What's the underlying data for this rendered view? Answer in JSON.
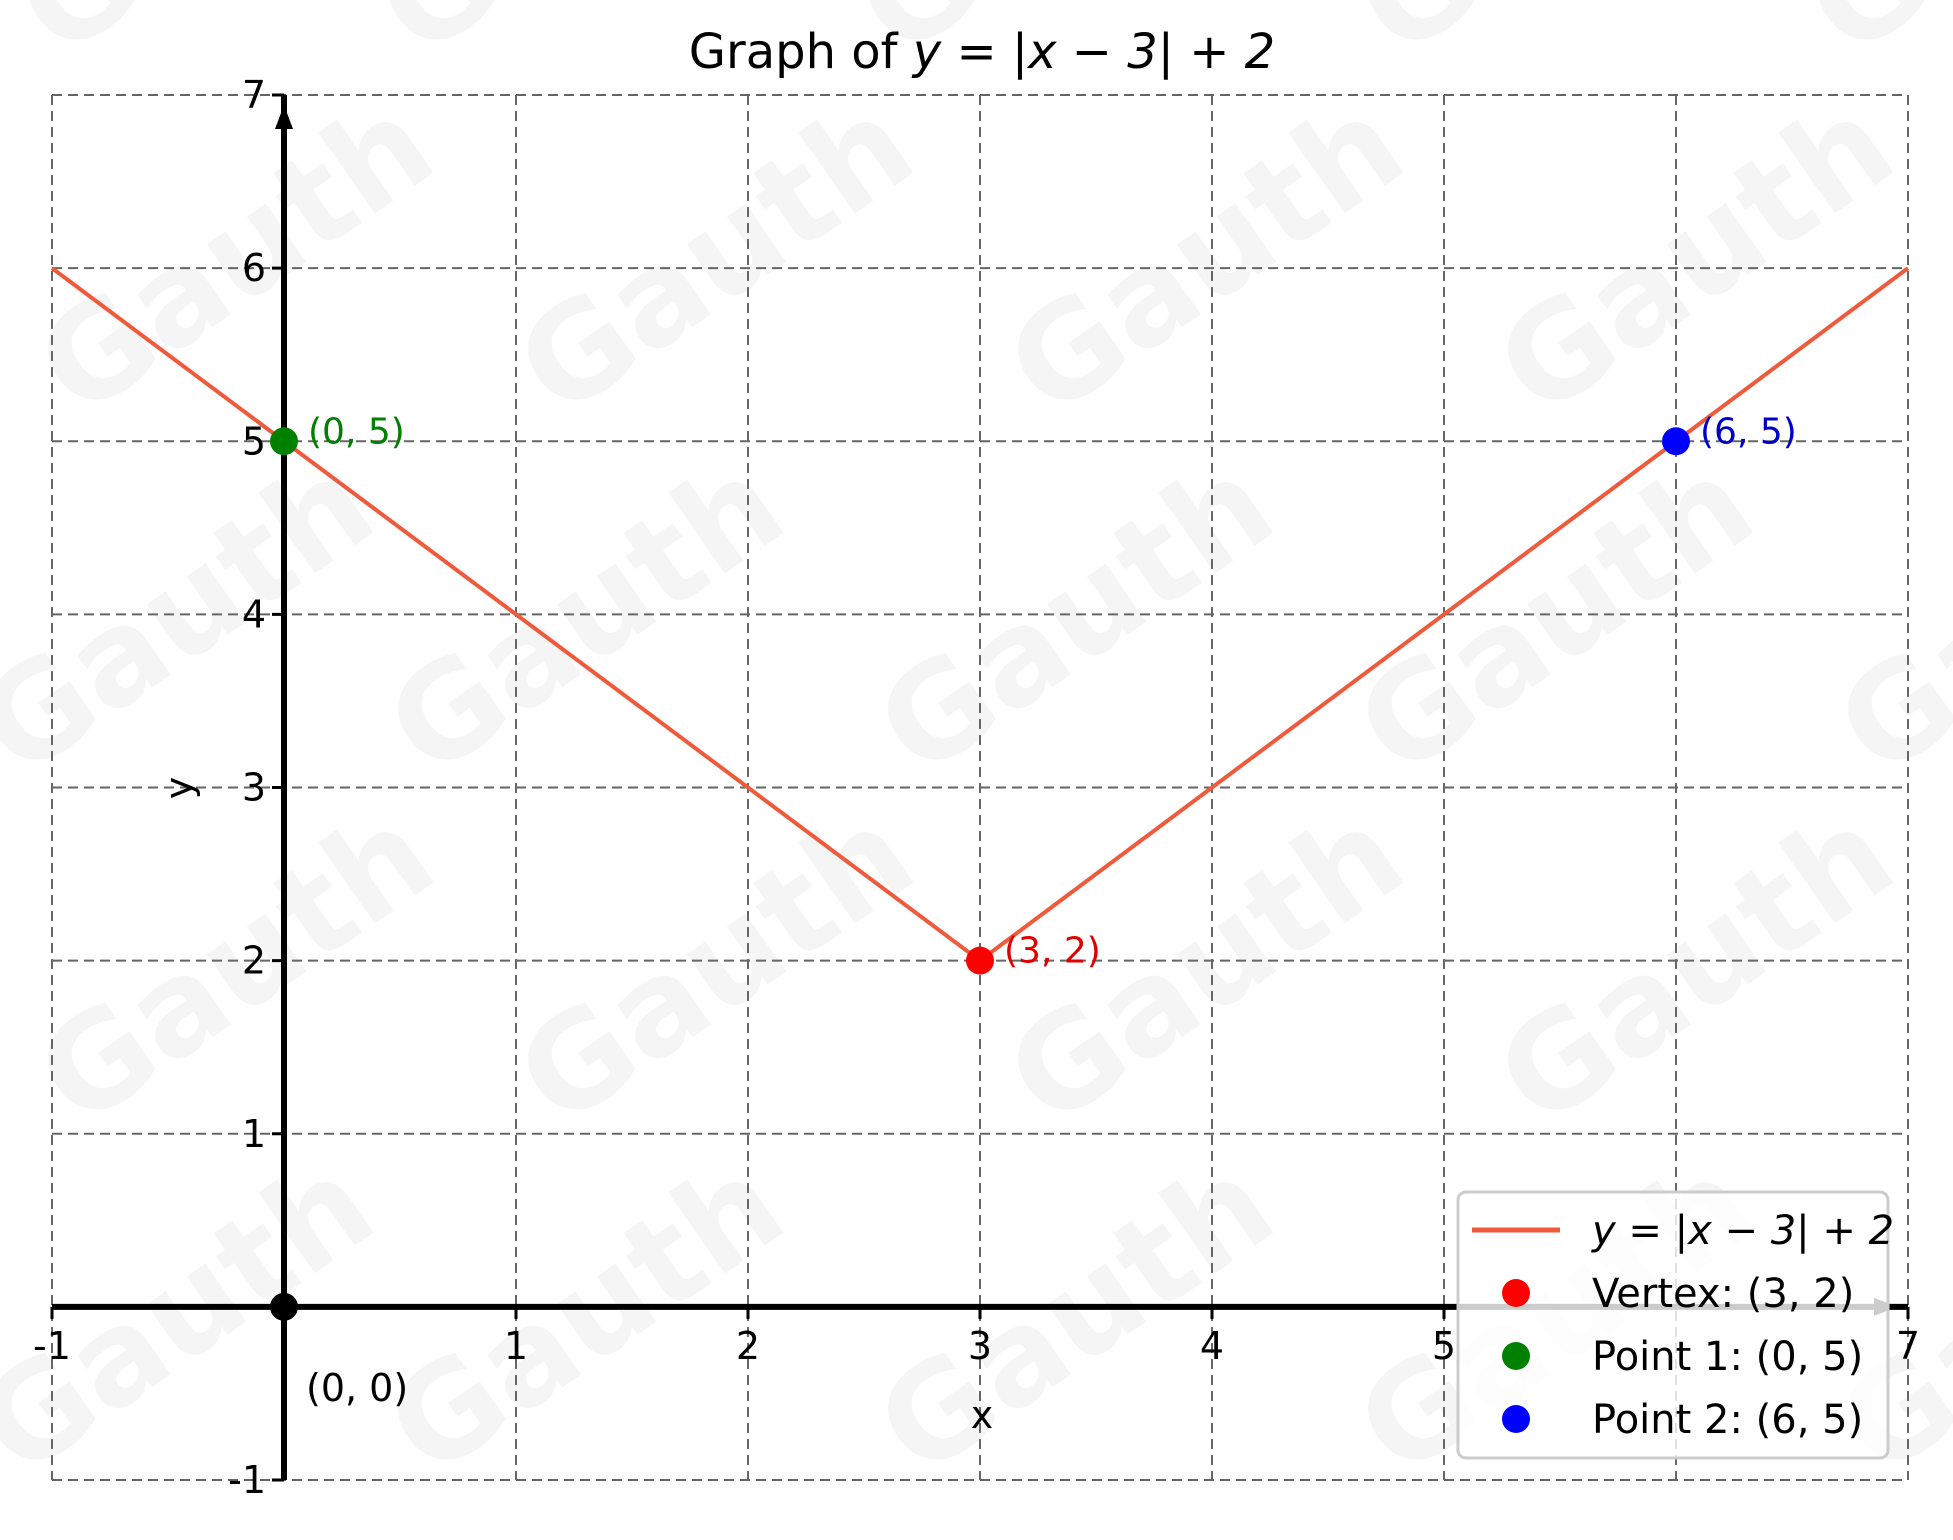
{
  "chart_data": {
    "type": "line",
    "title": "Graph of y = |x − 3| + 2",
    "title_parts": {
      "prefix": "Graph of ",
      "math": "y = |x − 3| + 2"
    },
    "xlabel": "x",
    "ylabel": "y",
    "xlim": [
      -1,
      7
    ],
    "ylim": [
      -1,
      7
    ],
    "grid": true,
    "grid_style": "dashed",
    "xticks": [
      -1,
      1,
      2,
      3,
      4,
      5,
      7
    ],
    "xtick_labels": [
      "-1",
      "1",
      "2",
      "3",
      "4",
      "5",
      "7"
    ],
    "yticks": [
      -1,
      1,
      2,
      3,
      4,
      5,
      6,
      7
    ],
    "ytick_labels": [
      "-1",
      "1",
      "2",
      "3",
      "4",
      "5",
      "6",
      "7"
    ],
    "series": [
      {
        "name": "y = |x − 3| + 2",
        "kind": "line",
        "color": "#f05a3c",
        "x": [
          -1,
          0,
          1,
          2,
          3,
          4,
          5,
          6,
          7
        ],
        "y": [
          6,
          5,
          4,
          3,
          2,
          3,
          4,
          5,
          6
        ]
      },
      {
        "name": "Vertex: (3, 2)",
        "kind": "point",
        "color": "#ff0000",
        "x": [
          3
        ],
        "y": [
          2
        ]
      },
      {
        "name": "Point 1: (0, 5)",
        "kind": "point",
        "color": "#008000",
        "x": [
          0
        ],
        "y": [
          5
        ]
      },
      {
        "name": "Point 2: (6, 5)",
        "kind": "point",
        "color": "#0000ff",
        "x": [
          6
        ],
        "y": [
          5
        ]
      }
    ],
    "annotations": [
      {
        "text": "(0, 5)",
        "x": 0,
        "y": 5,
        "color": "#008000"
      },
      {
        "text": "(3, 2)",
        "x": 3,
        "y": 2,
        "color": "#e00000"
      },
      {
        "text": "(6, 5)",
        "x": 6,
        "y": 5,
        "color": "#0000cc"
      },
      {
        "text": "(0, 0)",
        "x": 0,
        "y": 0,
        "color": "#000000"
      }
    ],
    "origin_marker": {
      "x": 0,
      "y": 0,
      "color": "#000000"
    },
    "legend": {
      "position": "lower right",
      "entries": [
        {
          "label": "y = |x − 3| + 2",
          "marker": "line",
          "color": "#f05a3c"
        },
        {
          "label": "Vertex: (3, 2)",
          "marker": "dot",
          "color": "#ff0000"
        },
        {
          "label": "Point 1: (0, 5)",
          "marker": "dot",
          "color": "#008000"
        },
        {
          "label": "Point 2: (6, 5)",
          "marker": "dot",
          "color": "#0000ff"
        }
      ]
    }
  },
  "watermark": {
    "text": "Gauth"
  }
}
